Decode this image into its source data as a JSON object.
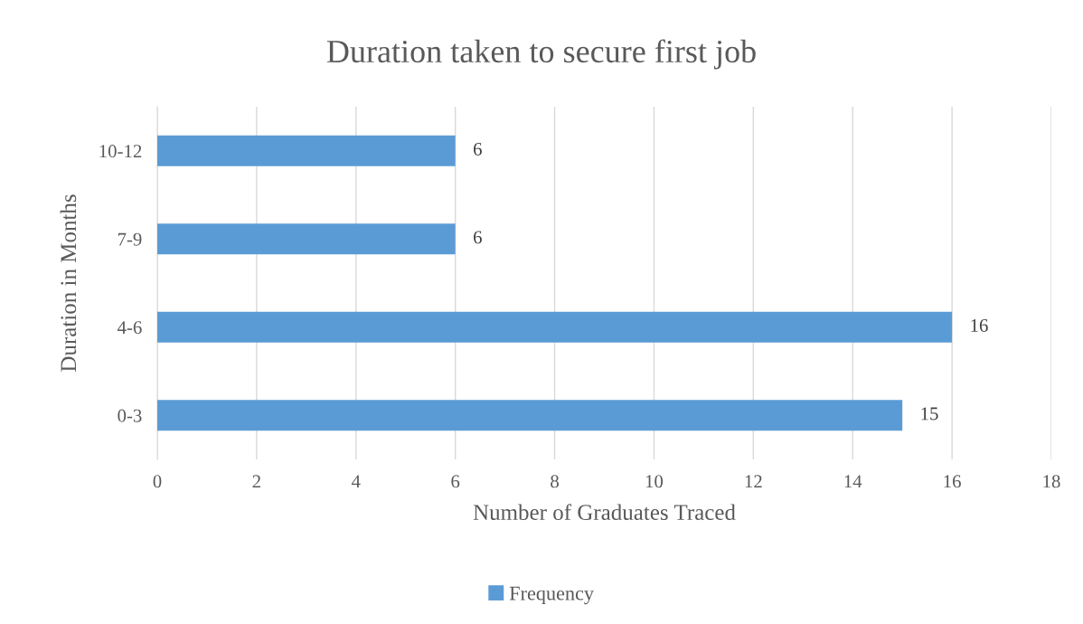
{
  "chart_data": {
    "type": "bar",
    "orientation": "horizontal",
    "title": "Duration taken to secure first job",
    "xlabel": "Number of Graduates Traced",
    "ylabel": "Duration in Months",
    "categories": [
      "10-12",
      "7-9",
      "4-6",
      "0-3"
    ],
    "series": [
      {
        "name": "Frequency",
        "color": "#5b9bd5",
        "values": [
          6,
          6,
          16,
          15
        ]
      }
    ],
    "xlim": [
      0,
      18
    ],
    "xticks": [
      0,
      2,
      4,
      6,
      8,
      10,
      12,
      14,
      16,
      18
    ],
    "grid": "x",
    "legend": "bottom",
    "data_labels": true
  }
}
